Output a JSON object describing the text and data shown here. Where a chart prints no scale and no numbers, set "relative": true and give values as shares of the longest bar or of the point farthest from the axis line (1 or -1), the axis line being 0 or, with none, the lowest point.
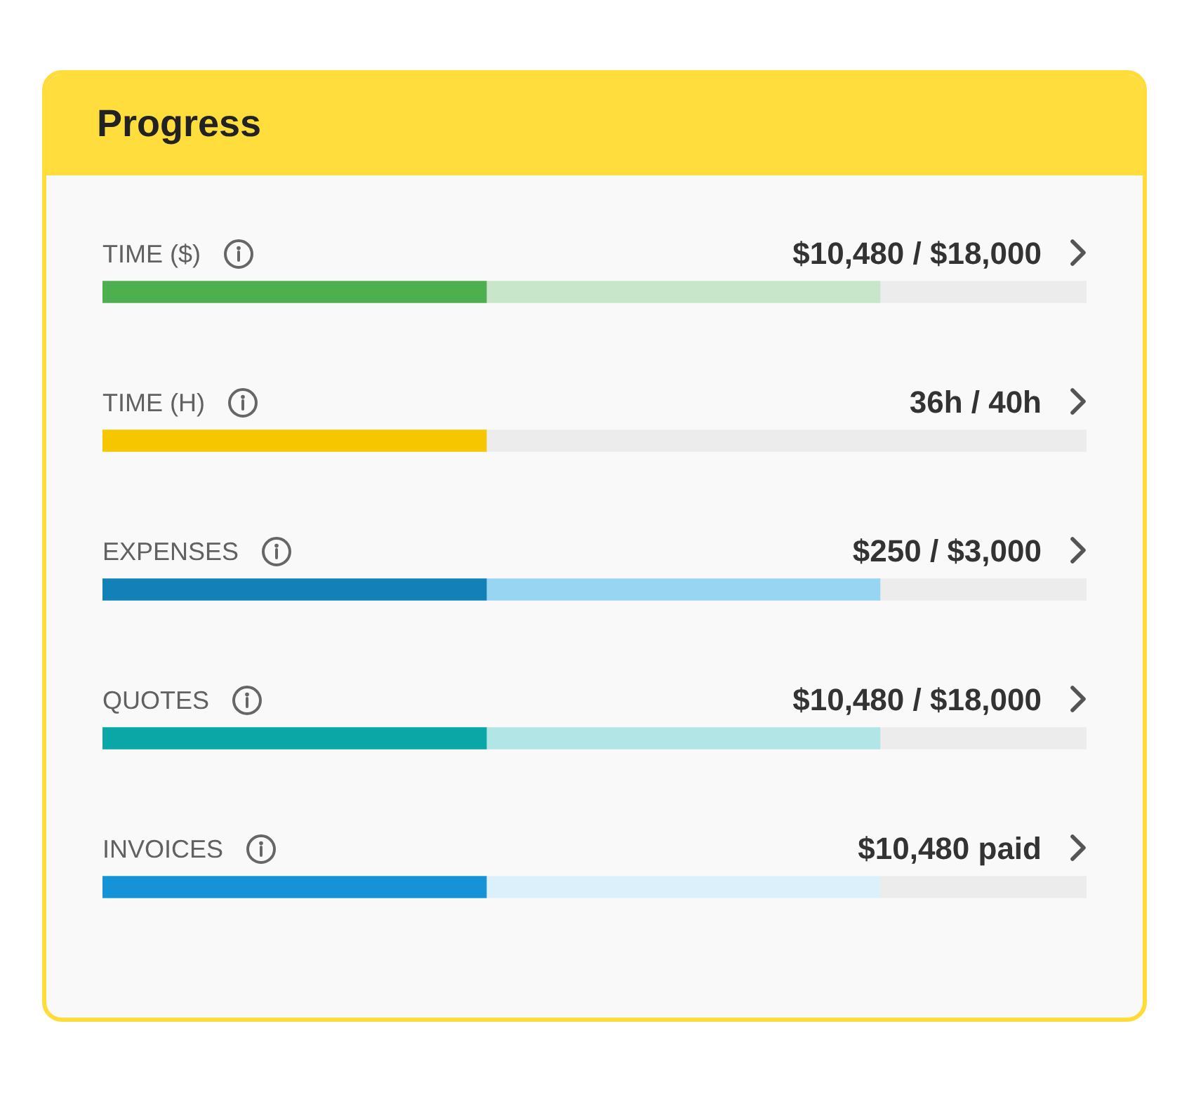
{
  "chart_data": {
    "type": "bar",
    "title": "Progress",
    "orientation": "horizontal",
    "stacked": true,
    "relative": true,
    "tick_labels": "y",
    "categories": [
      "TIME ($)",
      "TIME (H)",
      "EXPENSES",
      "QUOTES",
      "INVOICES"
    ],
    "series": [
      {
        "colors": [
          "#4caf50",
          "#f6c700",
          "#1480b8",
          "#0ba6a6",
          "#1693d6"
        ],
        "values": [
          0.39,
          0.39,
          0.39,
          0.39,
          0.39
        ]
      },
      {
        "colors": [
          "#c8e6c9",
          "#ececec",
          "#98d5f3",
          "#b2e6e6",
          "#dcf0fb"
        ],
        "values": [
          0.4,
          null,
          0.4,
          0.4,
          0.4
        ]
      },
      {
        "color": "#ececec",
        "values": [
          0.21,
          0.61,
          0.21,
          0.21,
          0.21
        ]
      }
    ],
    "annotations": [
      "$10,480 / $18,000",
      "36h / 40h",
      "$250 / $3,000",
      "$10,480 / $18,000",
      "$10,480 paid"
    ]
  }
}
